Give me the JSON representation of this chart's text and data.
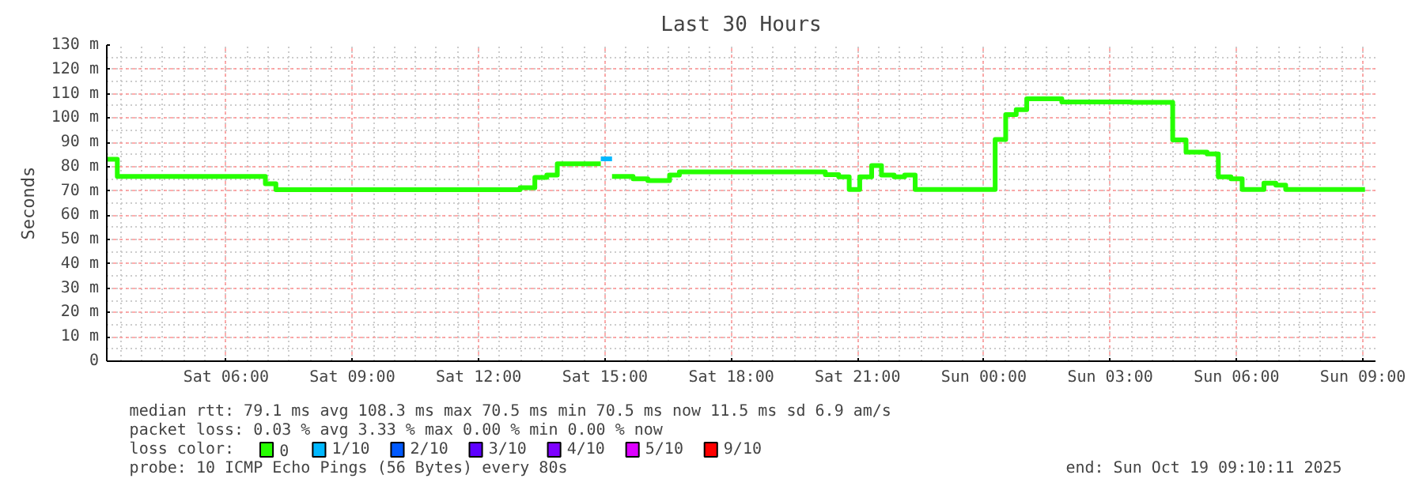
{
  "chart_data": {
    "type": "step",
    "title": "Last 30 Hours",
    "ylabel": "Seconds",
    "grid": true,
    "legend": "bottom left",
    "line_style": "solid",
    "marker": "none",
    "xlim": [
      "2025-10-18T03:10",
      "2025-10-19T09:18"
    ],
    "xticks": [
      {
        "value": "2025-10-18T06:00",
        "label": "Sat 06:00"
      },
      {
        "value": "2025-10-18T09:00",
        "label": "Sat 09:00"
      },
      {
        "value": "2025-10-18T12:00",
        "label": "Sat 12:00"
      },
      {
        "value": "2025-10-18T15:00",
        "label": "Sat 15:00"
      },
      {
        "value": "2025-10-18T18:00",
        "label": "Sat 18:00"
      },
      {
        "value": "2025-10-18T21:00",
        "label": "Sat 21:00"
      },
      {
        "value": "2025-10-19T00:00",
        "label": "Sun 00:00"
      },
      {
        "value": "2025-10-19T03:00",
        "label": "Sun 03:00"
      },
      {
        "value": "2025-10-19T06:00",
        "label": "Sun 06:00"
      },
      {
        "value": "2025-10-19T09:00",
        "label": "Sun 09:00"
      }
    ],
    "ylim": [
      0,
      130
    ],
    "yticks": [
      0,
      {
        "value": 10,
        "label": "10 m"
      },
      {
        "value": 20,
        "label": "20 m"
      },
      {
        "value": 30,
        "label": "30 m"
      },
      {
        "value": 40,
        "label": "40 m"
      },
      {
        "value": 50,
        "label": "50 m"
      },
      {
        "value": 60,
        "label": "60 m"
      },
      {
        "value": 70,
        "label": "70 m"
      },
      {
        "value": 80,
        "label": "80 m"
      },
      {
        "value": 90,
        "label": "90 m"
      },
      {
        "value": 100,
        "label": "100 m"
      },
      {
        "value": 110,
        "label": "110 m"
      },
      {
        "value": 120,
        "label": "120 m"
      },
      {
        "value": 130,
        "label": "130 m"
      }
    ],
    "series": [
      {
        "name": "0",
        "color": "#26ff00",
        "x": [
          "2025-10-18T03:10",
          "2025-10-18T03:25",
          "2025-10-18T06:56",
          "2025-10-18T07:11",
          "2025-10-18T12:59",
          "2025-10-18T13:20",
          "2025-10-18T13:37",
          "2025-10-18T13:52",
          "2025-10-18T14:54",
          "2025-10-18T15:10",
          "2025-10-18T15:40",
          "2025-10-18T16:01",
          "2025-10-18T16:32",
          "2025-10-18T16:46",
          "2025-10-18T20:14",
          "2025-10-18T20:33",
          "2025-10-18T20:48",
          "2025-10-18T21:03",
          "2025-10-18T21:20",
          "2025-10-18T21:34",
          "2025-10-18T21:52",
          "2025-10-18T22:07",
          "2025-10-18T22:22",
          "2025-10-19T00:16",
          "2025-10-19T00:31",
          "2025-10-19T00:46",
          "2025-10-19T01:01",
          "2025-10-19T01:51",
          "2025-10-19T03:29",
          "2025-10-19T04:29",
          "2025-10-19T04:48",
          "2025-10-19T05:18",
          "2025-10-19T05:34",
          "2025-10-19T05:52",
          "2025-10-19T06:08",
          "2025-10-19T06:39",
          "2025-10-19T06:56",
          "2025-10-19T07:10",
          "2025-10-19T09:03"
        ],
        "values": [
          83,
          76,
          73,
          70.5,
          71.3,
          75.6,
          76.5,
          81.2,
          null,
          76,
          75,
          74.3,
          76.5,
          77.8,
          76.7,
          75.8,
          70.6,
          75.8,
          80.4,
          76.5,
          75.8,
          76.5,
          70.6,
          91.2,
          101.4,
          103.4,
          107.9,
          106.6,
          106.4,
          91,
          86,
          85.2,
          75.8,
          75,
          70.6,
          73.2,
          72.4,
          70.6,
          70.6
        ]
      },
      {
        "name": "1/10",
        "color": "#00b8ff",
        "x": [
          "2025-10-18T14:54",
          "2025-10-18T15:10"
        ],
        "values": [
          83.2,
          83.2
        ]
      },
      {
        "name": "2/10",
        "color": "#0059ff"
      },
      {
        "name": "3/10",
        "color": "#5e00ff"
      },
      {
        "name": "4/10",
        "color": "#7e00ff"
      },
      {
        "name": "5/10",
        "color": "#dd00ff"
      },
      {
        "name": "9/10",
        "color": "#ff0000"
      }
    ],
    "annotations": [
      "median rtt:  79.1 ms avg  108.3 ms max  70.5 ms min  70.5 ms now  11.5 ms sd  6.9   am/s",
      "packet loss: 0.03 % avg  3.33 % max  0.00 % min  0.00 % now",
      "loss color:",
      "probe:       10 ICMP Echo Pings (56 Bytes) every 80s",
      "end: Sun Oct 19 09:10:11 2025"
    ]
  }
}
